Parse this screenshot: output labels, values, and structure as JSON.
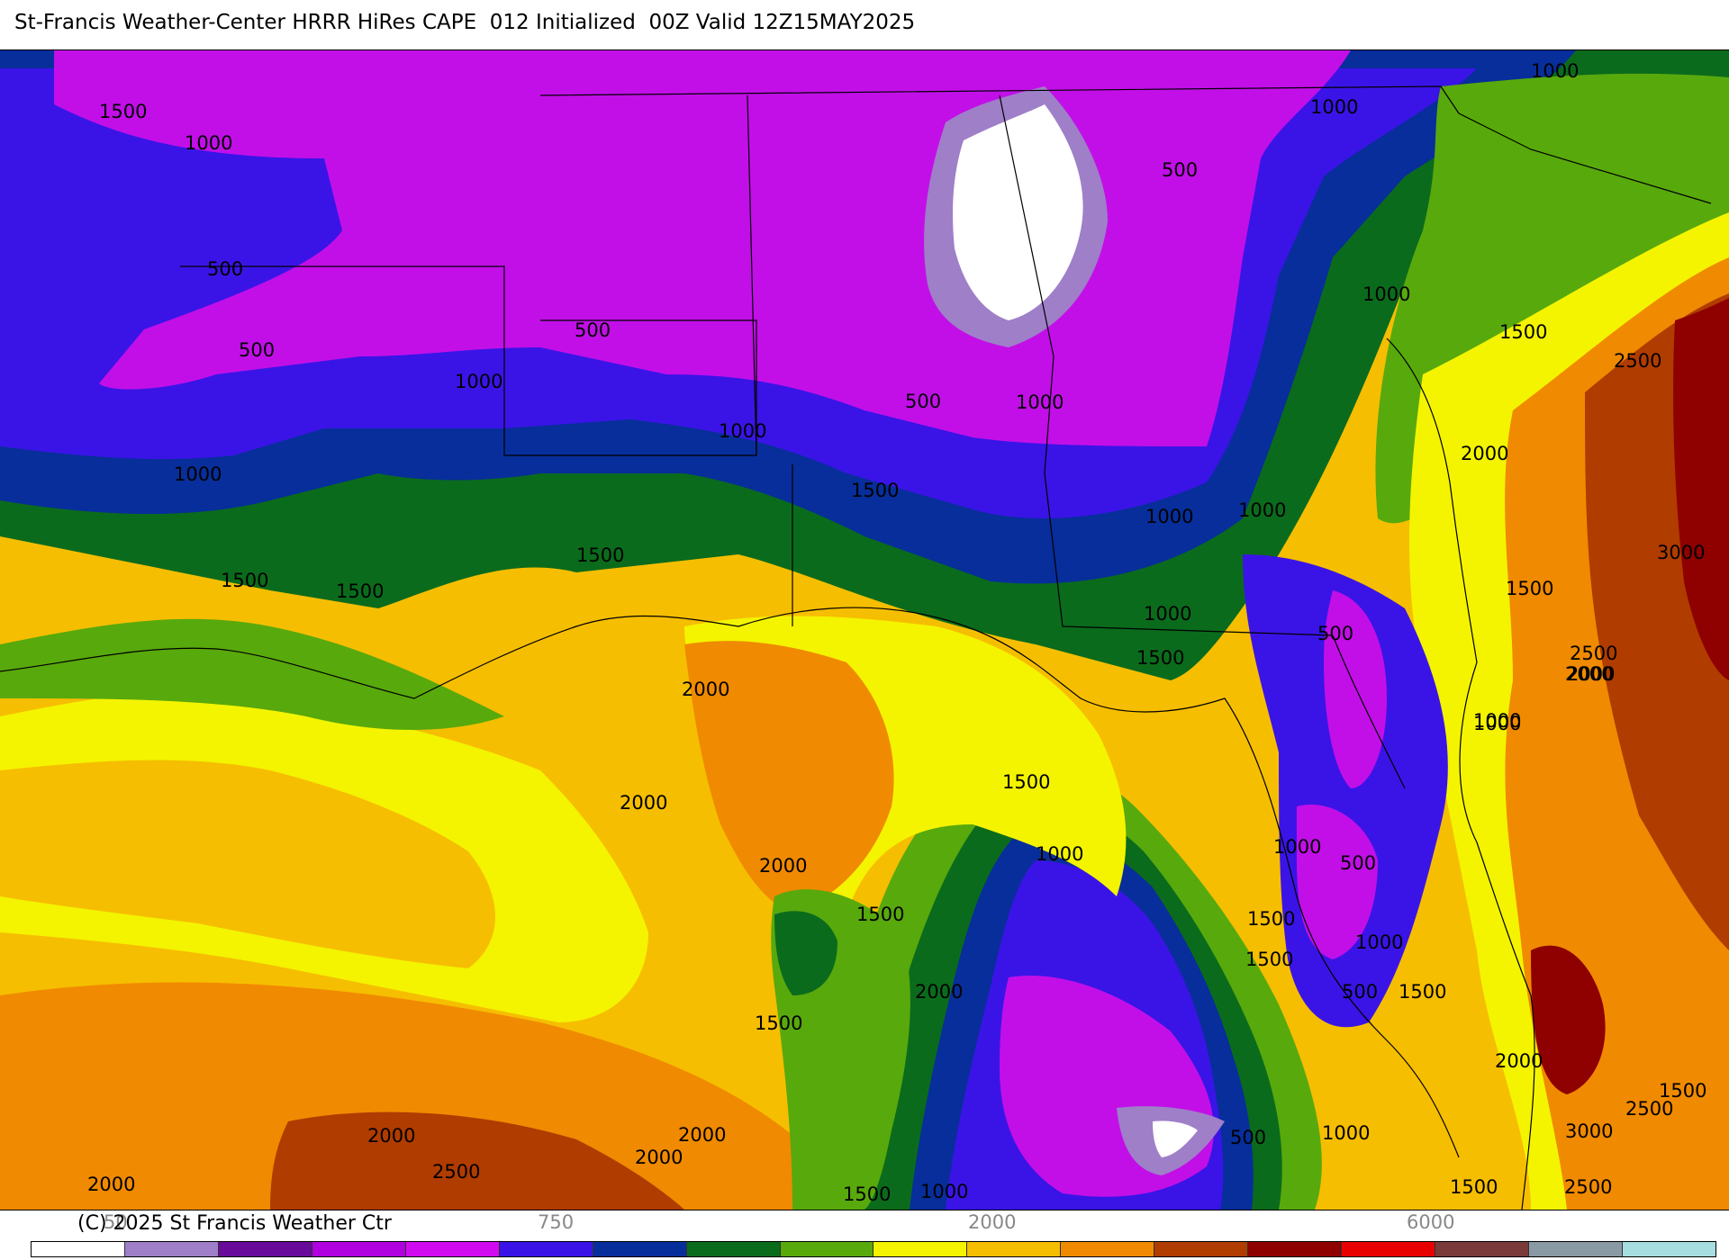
{
  "title": "St-Francis Weather-Center HRRR HiRes CAPE  012 Initialized  00Z Valid 12Z15MAY2025",
  "credit": "(C) 2025 St Francis Weather Ctr",
  "legend": {
    "ticks": [
      "50",
      "750",
      "2000",
      "6000"
    ],
    "colors": [
      "#ffffff",
      "#9f7fc8",
      "#6a0a9b",
      "#b000e0",
      "#d10bf0",
      "#3a14e6",
      "#072e9a",
      "#0b6b1c",
      "#58a90c",
      "#f4f400",
      "#f6be00",
      "#f08a00",
      "#b03c00",
      "#8f0000",
      "#e80000",
      "#7a3a3a",
      "#8a9aa5",
      "#a6dde0"
    ]
  },
  "map": {
    "colors": {
      "white": "#ffffff",
      "lavender": "#9f7fc8",
      "purple": "#6a0a9b",
      "magenta": "#c20fe8",
      "blue": "#3a14e6",
      "navy": "#072e9a",
      "dkgreen": "#0b6b1c",
      "green": "#58a90c",
      "yellow": "#f4f400",
      "gold": "#f6be00",
      "orange": "#f08a00",
      "rust": "#b03c00",
      "dkred": "#8f0000"
    },
    "contour_labels": [
      "1500",
      "1000",
      "500",
      "500",
      "1000",
      "500",
      "1000",
      "1000",
      "1000",
      "1500",
      "1500",
      "1500",
      "1500",
      "500",
      "1000",
      "500",
      "1000",
      "1000",
      "1000",
      "1500",
      "2000",
      "1000",
      "500",
      "1000",
      "1000",
      "1500",
      "2500",
      "2000",
      "3000",
      "1500",
      "2500",
      "2000",
      "1000",
      "1500",
      "2000",
      "1000",
      "2000",
      "1500",
      "2000",
      "1500",
      "500",
      "1000",
      "1000",
      "1500",
      "1500",
      "500",
      "2000",
      "1500",
      "2500",
      "3000",
      "2000",
      "500",
      "1000",
      "1500",
      "2000",
      "2000",
      "2500",
      "2000",
      "2000",
      "1500",
      "1000",
      "2500",
      "1500"
    ]
  }
}
